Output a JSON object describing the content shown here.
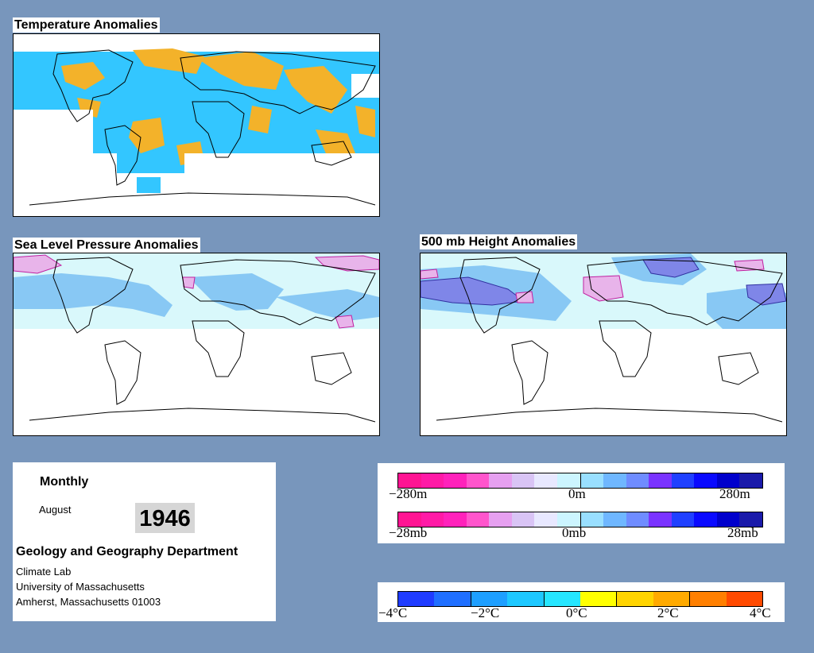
{
  "maps": {
    "temperature": {
      "title": "Temperature Anomalies"
    },
    "slp": {
      "title": "Sea Level Pressure Anomalies"
    },
    "height500": {
      "title": "500 mb Height Anomalies"
    }
  },
  "info": {
    "period": "Monthly",
    "month": "August",
    "year": "1946",
    "department": "Geology and Geography Department",
    "lab": "Climate Lab",
    "university": "University of Massachusetts",
    "address": "Amherst, Massachusetts 01003"
  },
  "legend_height": {
    "labels": [
      "−280m",
      "0m",
      "280m"
    ],
    "colors": [
      "#ff1493",
      "#ff1aa6",
      "#ff22bb",
      "#ff55cc",
      "#e6a0f0",
      "#d9c4f5",
      "#e8e8ff",
      "#ccf5ff",
      "#99dfff",
      "#6fb7ff",
      "#6f8cff",
      "#7a33ff",
      "#2040ff",
      "#0a0aff",
      "#0000cc",
      "#1a1aaa"
    ]
  },
  "legend_pressure": {
    "labels": [
      "−28mb",
      "0mb",
      "28mb"
    ],
    "colors": [
      "#ff1493",
      "#ff1aa6",
      "#ff22bb",
      "#ff55cc",
      "#e6a0f0",
      "#d9c4f5",
      "#e8e8ff",
      "#ccf5ff",
      "#99dfff",
      "#6fb7ff",
      "#6f8cff",
      "#7a33ff",
      "#2040ff",
      "#0a0aff",
      "#0000cc",
      "#1a1aaa"
    ]
  },
  "legend_temperature": {
    "labels": [
      "−4°C",
      "−2°C",
      "0°C",
      "2°C",
      "4°C"
    ],
    "colors": [
      "#1f3cff",
      "#1f6fff",
      "#1e9fff",
      "#1ec8ff",
      "#26e6ff",
      "#ffff00",
      "#ffd400",
      "#ffaa00",
      "#ff7f00",
      "#ff4a00"
    ]
  },
  "palette": {
    "background": "#7896bc",
    "land_outline": "#000000",
    "cool": "#33c6ff",
    "warm": "#f3b22a",
    "slp_base": "#d9f8fb",
    "slp_neg": "#88c8f4",
    "slp_pos": "#e8b4ea"
  }
}
